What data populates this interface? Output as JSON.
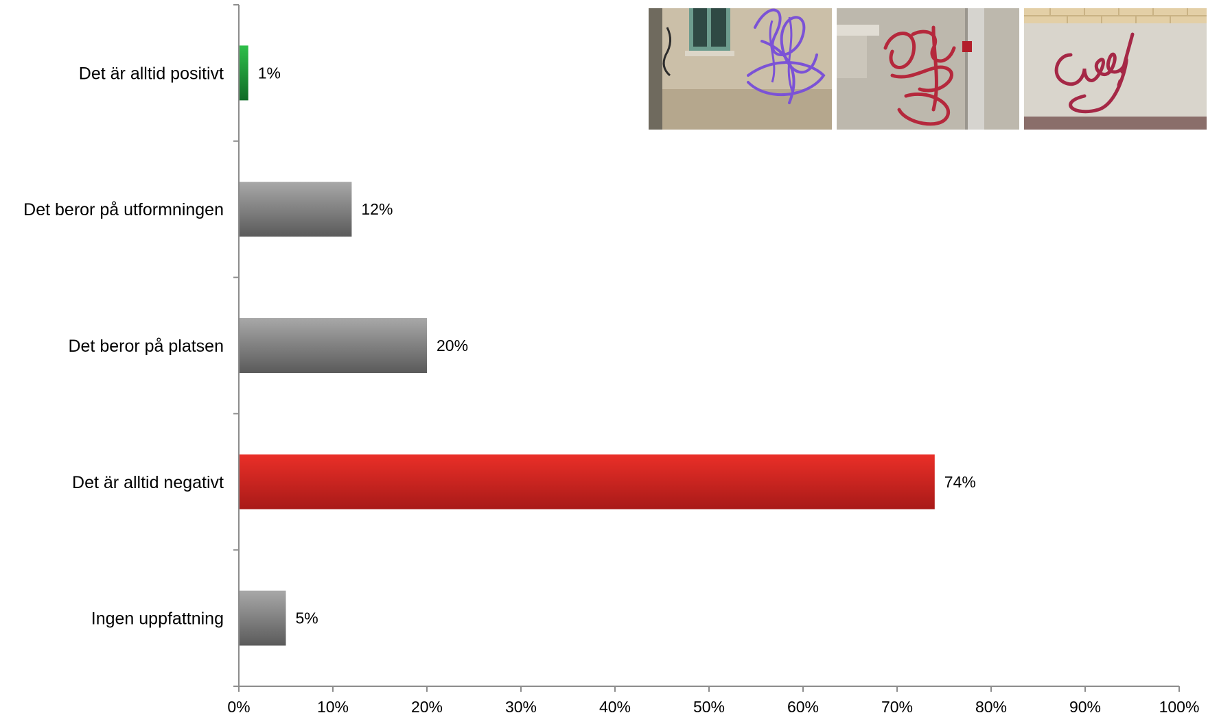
{
  "chart_data": {
    "type": "bar",
    "orientation": "horizontal",
    "categories": [
      "Det är alltid positivt",
      "Det beror på utformningen",
      "Det beror på platsen",
      "Det är alltid negativt",
      "Ingen uppfattning"
    ],
    "values": [
      1,
      12,
      20,
      74,
      5
    ],
    "value_labels": [
      "1%",
      "12%",
      "20%",
      "74%",
      "5%"
    ],
    "bar_colors": [
      "green",
      "gray",
      "gray",
      "red",
      "gray"
    ],
    "xlim": [
      0,
      100
    ],
    "x_ticks": [
      0,
      10,
      20,
      30,
      40,
      50,
      60,
      70,
      80,
      90,
      100
    ],
    "x_tick_labels": [
      "0%",
      "10%",
      "20%",
      "30%",
      "40%",
      "50%",
      "60%",
      "70%",
      "80%",
      "90%",
      "100%"
    ],
    "title": "",
    "xlabel": "",
    "ylabel": "",
    "grid": false,
    "legend": "none"
  },
  "photos": [
    {
      "icon": "graffiti-tag-purple-photo"
    },
    {
      "icon": "graffiti-tag-red-drainpipe-photo"
    },
    {
      "icon": "graffiti-tag-red-script-photo"
    }
  ],
  "colors": {
    "green_top": "#2fbf4a",
    "green_bottom": "#0f6b26",
    "gray_top": "#a8a8a8",
    "gray_bottom": "#5a5a5a",
    "red_top": "#ea2f28",
    "red_bottom": "#a81a18",
    "axis": "#8c8c8c"
  }
}
